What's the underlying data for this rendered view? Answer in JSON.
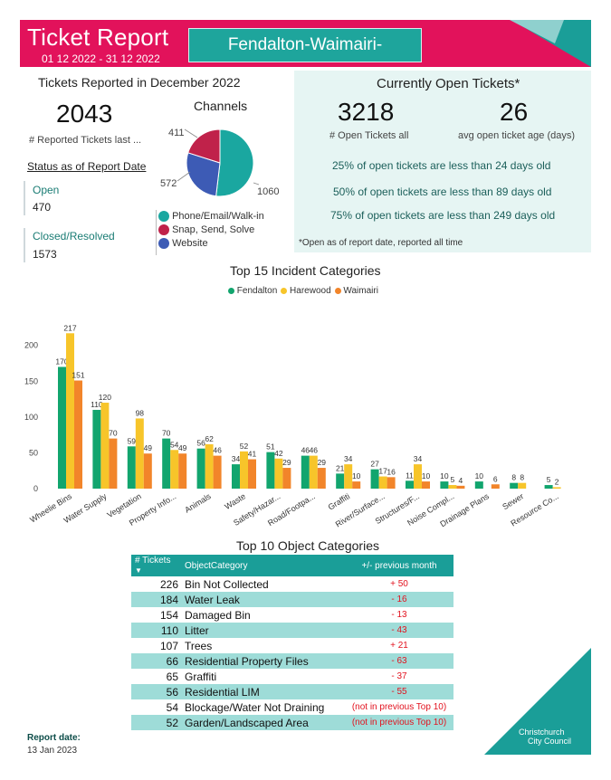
{
  "header": {
    "title": "Ticket Report",
    "date_range": "01 12 2022 - 31 12 2022",
    "region": "Fendalton-Waimairi-Harewood"
  },
  "reported": {
    "heading": "Tickets Reported in December 2022",
    "total": "2043",
    "total_label": "# Reported Tickets last ...",
    "status_heading": "Status as of Report Date",
    "open_label": "Open",
    "open_value": "470",
    "closed_label": "Closed/Resolved",
    "closed_value": "1573"
  },
  "channels": {
    "heading": "Channels",
    "slices": [
      {
        "label": "Phone/Email/Walk-in",
        "value": 1060,
        "color": "#1aa7a0"
      },
      {
        "label": "Snap, Send, Solve",
        "value": 411,
        "color": "#c0224a"
      },
      {
        "label": "Website",
        "value": 572,
        "color": "#3d5bb5"
      }
    ],
    "value_labels": [
      "411",
      "572",
      "1060"
    ]
  },
  "open_tickets": {
    "heading": "Currently Open Tickets*",
    "count": "3218",
    "count_label": "# Open Tickets all",
    "avg_age": "26",
    "avg_age_label": "avg open ticket age (days)",
    "q1": "25% of open tickets are less than 24 days old",
    "q2": "50% of open tickets are less than 89 days old",
    "q3": "75% of open tickets are less than 249 days old",
    "footnote": "*Open as of report date, reported all time"
  },
  "chart_data": {
    "type": "bar",
    "title": "Top 15 Incident Categories",
    "categories": [
      "Wheelie Bins",
      "Water Supply",
      "Vegetation",
      "Property Info...",
      "Animals",
      "Waste",
      "Safety/Hazar...",
      "Road/Footpa...",
      "Graffiti",
      "River/Surface...",
      "Structures/F...",
      "Noise Compl...",
      "Drainage Plans",
      "Sewer",
      "Resource Co..."
    ],
    "series": [
      {
        "name": "Fendalton",
        "color": "#12a56e",
        "values": [
          170,
          110,
          59,
          70,
          56,
          34,
          51,
          46,
          21,
          27,
          11,
          10,
          10,
          8,
          5
        ]
      },
      {
        "name": "Harewood",
        "color": "#f7c52a",
        "values": [
          217,
          120,
          98,
          54,
          62,
          52,
          42,
          46,
          34,
          17,
          34,
          5,
          null,
          8,
          2
        ]
      },
      {
        "name": "Waimairi",
        "color": "#f2852a",
        "values": [
          151,
          70,
          49,
          49,
          46,
          41,
          29,
          29,
          10,
          16,
          10,
          4,
          6,
          null,
          null
        ]
      }
    ],
    "ylim": [
      0,
      230
    ],
    "yticks": [
      "0",
      "50",
      "100",
      "150",
      "200"
    ],
    "legend": "top-center",
    "grid": false
  },
  "objects": {
    "heading": "Top 10 Object Categories",
    "col_tickets": "# Tickets",
    "col_category": "ObjectCategory",
    "col_change": "+/- previous month",
    "rows": [
      {
        "count": "226",
        "category": "Bin Not Collected",
        "change": "+ 50"
      },
      {
        "count": "184",
        "category": "Water Leak",
        "change": "- 16"
      },
      {
        "count": "154",
        "category": "Damaged Bin",
        "change": "- 13"
      },
      {
        "count": "110",
        "category": "Litter",
        "change": "- 43"
      },
      {
        "count": "107",
        "category": "Trees",
        "change": "+ 21"
      },
      {
        "count": "66",
        "category": "Residential Property Files",
        "change": "- 63"
      },
      {
        "count": "65",
        "category": "Graffiti",
        "change": "- 37"
      },
      {
        "count": "56",
        "category": "Residential LIM",
        "change": "- 55"
      },
      {
        "count": "54",
        "category": "Blockage/Water Not Draining",
        "change": "(not in previous Top 10)"
      },
      {
        "count": "52",
        "category": "Garden/Landscaped Area",
        "change": "(not in previous Top 10)"
      }
    ]
  },
  "footer": {
    "report_date_label": "Report date:",
    "report_date": "13 Jan 2023",
    "logo_line1": "Christchurch",
    "logo_line2": "City Council"
  }
}
